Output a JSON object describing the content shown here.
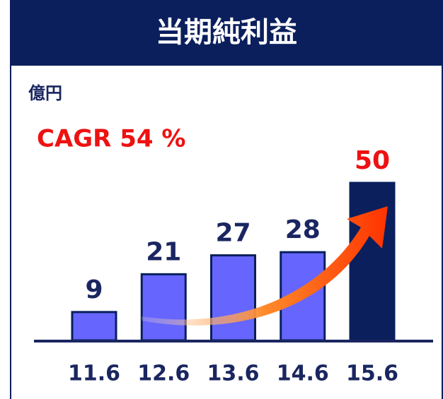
{
  "chart_data": {
    "type": "bar",
    "title": "当期純利益",
    "unit_label": "億円",
    "annotation": "CAGR 54 %",
    "categories": [
      "11.6",
      "12.6",
      "13.6",
      "14.6",
      "15.6"
    ],
    "values": [
      9,
      21,
      27,
      28,
      50
    ],
    "colors": [
      "#6666ff",
      "#6666ff",
      "#6666ff",
      "#6666ff",
      "#0a1f5c"
    ],
    "label_colors": [
      "#1a2660",
      "#1a2660",
      "#1a2660",
      "#1a2660",
      "#ee1111"
    ],
    "annotation_color": "#ee1111"
  }
}
